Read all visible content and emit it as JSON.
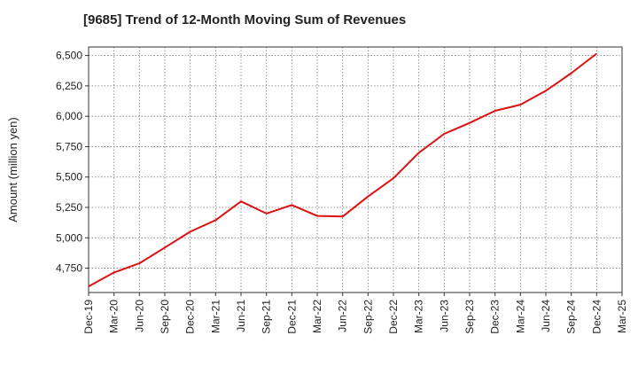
{
  "chart_data": {
    "type": "line",
    "title": "[9685]  Trend of 12-Month Moving Sum of Revenues",
    "xlabel": "",
    "ylabel": "Amount (million yen)",
    "ylim": [
      4550,
      6570
    ],
    "yticks": [
      4750,
      5000,
      5250,
      5500,
      5750,
      6000,
      6250,
      6500
    ],
    "ytick_labels": [
      "4,750",
      "5,000",
      "5,250",
      "5,500",
      "5,750",
      "6,000",
      "6,250",
      "6,500"
    ],
    "categories": [
      "Dec-19",
      "Mar-20",
      "Jun-20",
      "Sep-20",
      "Dec-20",
      "Mar-21",
      "Jun-21",
      "Sep-21",
      "Dec-21",
      "Mar-22",
      "Jun-22",
      "Sep-22",
      "Dec-22",
      "Mar-23",
      "Jun-23",
      "Sep-23",
      "Dec-23",
      "Mar-24",
      "Jun-24",
      "Sep-24",
      "Dec-24",
      "Mar-25"
    ],
    "grid": true,
    "series": [
      {
        "name": "12-Month Moving Sum of Revenues",
        "color": "#dd1111",
        "values": [
          4600,
          4715,
          4790,
          4920,
          5050,
          5145,
          5300,
          5200,
          5270,
          5180,
          5175,
          5340,
          5490,
          5700,
          5855,
          5945,
          6045,
          6095,
          6210,
          6355,
          6515,
          null
        ]
      }
    ]
  }
}
